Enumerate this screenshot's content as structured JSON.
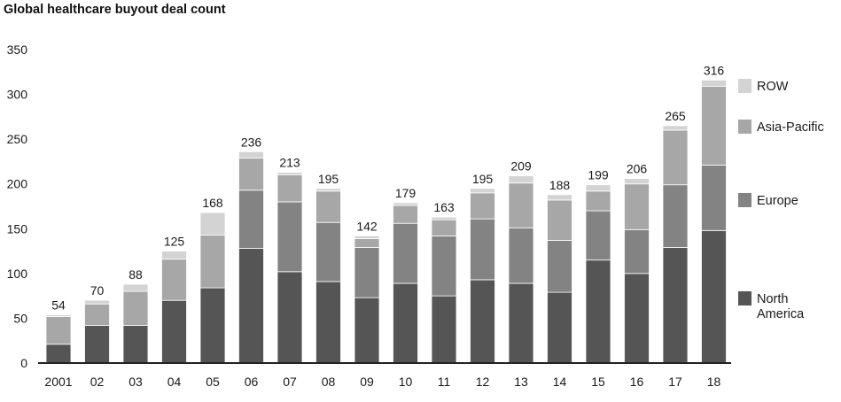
{
  "chart_data": {
    "type": "bar",
    "stacked": true,
    "title": "Global healthcare buyout deal count",
    "xlabel": "",
    "ylabel": "",
    "ylim": [
      0,
      350
    ],
    "yticks": [
      0,
      50,
      100,
      150,
      200,
      250,
      300,
      350
    ],
    "grid": false,
    "legend_position": "right",
    "categories": [
      "2001",
      "02",
      "03",
      "04",
      "05",
      "06",
      "07",
      "08",
      "09",
      "10",
      "11",
      "12",
      "13",
      "14",
      "15",
      "16",
      "17",
      "18"
    ],
    "totals": [
      54,
      70,
      88,
      125,
      168,
      236,
      213,
      195,
      142,
      179,
      163,
      195,
      209,
      188,
      199,
      206,
      265,
      316
    ],
    "series": [
      {
        "name": "North America",
        "color": "#555555",
        "values": [
          21,
          42,
          42,
          70,
          84,
          128,
          102,
          91,
          73,
          89,
          75,
          93,
          89,
          79,
          115,
          100,
          129,
          148
        ]
      },
      {
        "name": "Europe",
        "color": "#838383",
        "values": [
          0,
          0,
          0,
          0,
          0,
          65,
          78,
          66,
          56,
          67,
          67,
          68,
          62,
          58,
          55,
          49,
          70,
          73
        ]
      },
      {
        "name": "Asia-Pacific",
        "color": "#a7a7a7",
        "values": [
          31,
          24,
          38,
          46,
          59,
          36,
          30,
          35,
          10,
          20,
          18,
          29,
          50,
          45,
          22,
          51,
          61,
          88
        ]
      },
      {
        "name": "ROW",
        "color": "#d3d3d3",
        "values": [
          2,
          4,
          8,
          9,
          25,
          7,
          3,
          3,
          3,
          3,
          3,
          5,
          8,
          6,
          7,
          6,
          5,
          7
        ]
      }
    ]
  }
}
